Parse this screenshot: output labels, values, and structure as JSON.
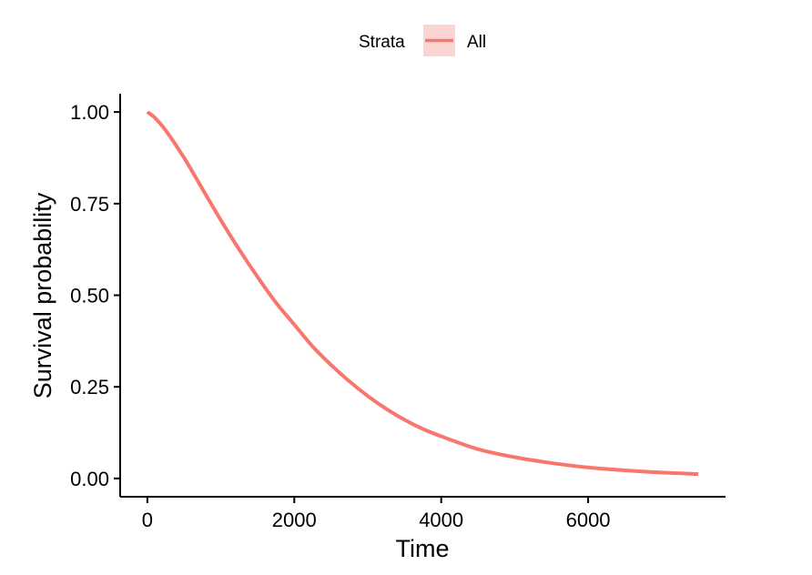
{
  "chart_data": {
    "type": "line",
    "xlabel": "Time",
    "ylabel": "Survival probability",
    "xlim": [
      -370,
      7870
    ],
    "ylim": [
      -0.05,
      1.05
    ],
    "xticks": [
      0,
      2000,
      4000,
      6000
    ],
    "xtick_labels": [
      "0",
      "2000",
      "4000",
      "6000"
    ],
    "yticks": [
      0.0,
      0.25,
      0.5,
      0.75,
      1.0
    ],
    "ytick_labels": [
      "0.00",
      "0.25",
      "0.50",
      "0.75",
      "1.00"
    ],
    "grid": false,
    "legend": {
      "title": "Strata",
      "position": "top",
      "entries": [
        "All"
      ]
    },
    "series": [
      {
        "name": "All",
        "color": "#F8766D",
        "x": [
          0,
          100,
          250,
          500,
          750,
          1000,
          1250,
          1500,
          1750,
          2000,
          2250,
          2500,
          2750,
          3000,
          3250,
          3500,
          3750,
          4000,
          4500,
          5000,
          5500,
          6000,
          6500,
          7000,
          7500
        ],
        "y": [
          1.0,
          0.985,
          0.95,
          0.875,
          0.79,
          0.705,
          0.625,
          0.55,
          0.48,
          0.42,
          0.36,
          0.31,
          0.265,
          0.225,
          0.19,
          0.16,
          0.135,
          0.115,
          0.08,
          0.058,
          0.042,
          0.03,
          0.022,
          0.016,
          0.012
        ]
      }
    ]
  }
}
